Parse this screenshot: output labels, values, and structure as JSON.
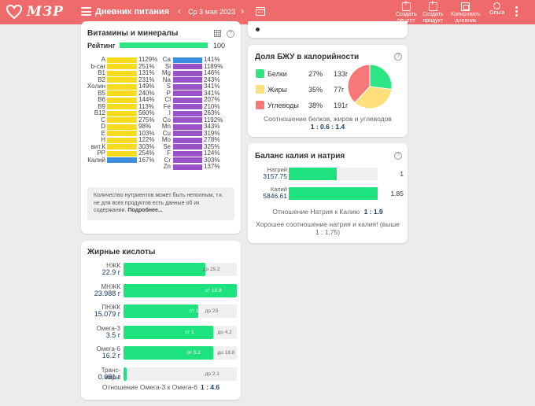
{
  "header": {
    "logo_text": "МЗР",
    "title": "Дневник питания",
    "date": "Ср 3 мая 2023",
    "prev_glyph": "‹",
    "next_glyph": "›",
    "actions": [
      {
        "label_line1": "Создать",
        "label_line2": "рецепт",
        "icon": "recipe-plus-icon"
      },
      {
        "label_line1": "Создать",
        "label_line2": "продукт",
        "icon": "product-plus-icon"
      },
      {
        "label_line1": "Копировать",
        "label_line2": "дневник",
        "icon": "copy-icon"
      },
      {
        "label_line1": "Ольга",
        "label_line2": "",
        "icon": "user-icon"
      }
    ],
    "bg_color": "#ef6b6b"
  },
  "vitamins": {
    "title": "Витамины и минералы",
    "rating_label": "Рейтинг",
    "rating_value": "100",
    "rating_fraction": 1.0,
    "left_items": [
      {
        "name": "A",
        "pct": "1129%"
      },
      {
        "name": "b-car",
        "pct": "251%"
      },
      {
        "name": "B1",
        "pct": "131%"
      },
      {
        "name": "B2",
        "pct": "231%"
      },
      {
        "name": "Холин",
        "pct": "149%"
      },
      {
        "name": "B5",
        "pct": "240%"
      },
      {
        "name": "B6",
        "pct": "144%"
      },
      {
        "name": "B9",
        "pct": "113%"
      },
      {
        "name": "B12",
        "pct": "560%"
      },
      {
        "name": "C",
        "pct": "275%"
      },
      {
        "name": "D",
        "pct": "98%"
      },
      {
        "name": "E",
        "pct": "103%"
      },
      {
        "name": "H",
        "pct": "122%"
      },
      {
        "name": "вит.К",
        "pct": "303%"
      },
      {
        "name": "PP",
        "pct": "254%"
      },
      {
        "name": "Калий",
        "pct": "167%"
      }
    ],
    "right_items": [
      {
        "name": "Ca",
        "pct": "141%"
      },
      {
        "name": "Si",
        "pct": "1189%"
      },
      {
        "name": "Mg",
        "pct": "146%"
      },
      {
        "name": "Na",
        "pct": "243%"
      },
      {
        "name": "S",
        "pct": "341%"
      },
      {
        "name": "P",
        "pct": "341%"
      },
      {
        "name": "Cl",
        "pct": "207%"
      },
      {
        "name": "Fe",
        "pct": "210%"
      },
      {
        "name": "I",
        "pct": "263%"
      },
      {
        "name": "Co",
        "pct": "1192%"
      },
      {
        "name": "Mn",
        "pct": "343%"
      },
      {
        "name": "Cu",
        "pct": "319%"
      },
      {
        "name": "Mo",
        "pct": "278%"
      },
      {
        "name": "Se",
        "pct": "325%"
      },
      {
        "name": "F",
        "pct": "124%"
      },
      {
        "name": "Cr",
        "pct": "303%"
      },
      {
        "name": "Zn",
        "pct": "137%"
      }
    ],
    "colors": {
      "vitamin": "#f5dc1e",
      "vitamin_highlight": "#3c8ee0",
      "mineral": "#9a52c8",
      "mineral_first": "#3c8ee0"
    },
    "note_text": "Количество нутриентов может быть неполным, т.к. не для всех продуктов есть данные об их содержании.",
    "note_link": "Подробнее..."
  },
  "fatty_acids": {
    "title": "Жирные кислоты",
    "rows": [
      {
        "name": "НЖК",
        "value": "22.9 г",
        "fill": 0.72,
        "ref_text": "до 25.2",
        "ref_pos": 0.7,
        "ref_in": false
      },
      {
        "name": "МНЖК",
        "value": "23.988 г",
        "fill": 1.0,
        "ref_text": "от 18.8",
        "ref_pos": 0.72,
        "ref_in": true
      },
      {
        "name": "ПНЖК",
        "value": "15.079 г",
        "fill": 0.66,
        "ref_text": "от 12.5",
        "ref_pos": 0.58,
        "ref_in": true,
        "ref2_text": "до 23",
        "ref2_pos": 0.72
      },
      {
        "name": "Омега-3",
        "value": "3.5 г",
        "fill": 0.79,
        "ref_text": "от 1",
        "ref_pos": 0.54,
        "ref_in": true,
        "ref2_text": "до 4.2",
        "ref2_pos": 0.83
      },
      {
        "name": "Омега-6",
        "value": "16.2 г",
        "fill": 0.79,
        "ref_text": "от 5.2",
        "ref_pos": 0.56,
        "ref_in": true,
        "ref2_text": "до 18.8",
        "ref2_pos": 0.83
      },
      {
        "name": "Транс-жиры",
        "value": "0.081 г",
        "fill": 0.03,
        "ref_text": "до 2.1",
        "ref_pos": 0.72,
        "ref_in": false
      }
    ],
    "ratio_label": "Отношение Омега-3 к Омега-6",
    "ratio_value": "1 : 4.6"
  },
  "bju": {
    "title": "Доля БЖУ в калорийности",
    "items": [
      {
        "name": "Белки",
        "pct": "27%",
        "grams": "133г",
        "color": "#2ee584",
        "share": 0.27
      },
      {
        "name": "Жиры",
        "pct": "35%",
        "grams": "77г",
        "color": "#fde07a",
        "share": 0.35
      },
      {
        "name": "Углеводы",
        "pct": "38%",
        "grams": "191г",
        "color": "#f67878",
        "share": 0.38
      }
    ],
    "ratio_label": "Соотношение белков, жиров и углеводов",
    "ratio_value": "1 : 0.6 : 1.4"
  },
  "potassium_sodium": {
    "title": "Баланс калия и натрия",
    "rows": [
      {
        "name": "Натрий",
        "value": "3157.75",
        "fill": 0.54,
        "number": "1"
      },
      {
        "name": "Калий",
        "value": "5846.61",
        "fill": 1.0,
        "number": "1.85"
      }
    ],
    "ratio_label": "Отношение Натрия к Калию",
    "ratio_value": "1 : 1.9",
    "verdict": "Хорошее соотношение натрия и калия! (выше 1 : 1,75)"
  }
}
